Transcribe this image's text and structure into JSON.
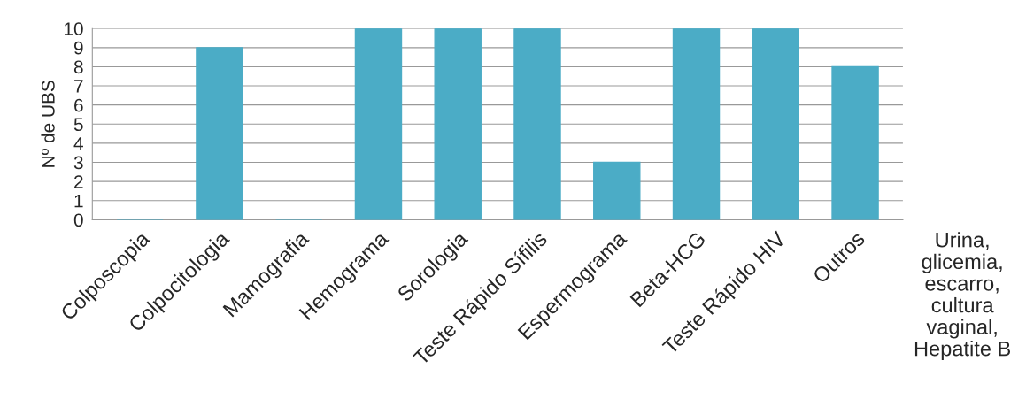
{
  "chart_data": {
    "type": "bar",
    "ylabel": "Nº de UBS",
    "categories": [
      "Colposcopia",
      "Colpocitologia",
      "Mamografia",
      "Hemograma",
      "Sorologia",
      "Teste Rápido Sífilis",
      "Espermograma",
      "Beta-HCG",
      "Teste Rápido HIV",
      "Outros"
    ],
    "values": [
      0,
      9,
      0,
      10,
      10,
      10,
      3,
      10,
      10,
      8
    ],
    "color": "#4bacc6",
    "ylim": [
      0,
      10
    ],
    "yticks": [
      0,
      1,
      2,
      3,
      4,
      5,
      6,
      7,
      8,
      9,
      10
    ],
    "grid": "y",
    "annotations": [
      "Urina,\nglicemia,\nescarro,\ncultura\nvaginal,\nHepatite B"
    ]
  }
}
